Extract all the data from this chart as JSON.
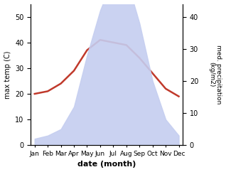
{
  "months": [
    "Jan",
    "Feb",
    "Mar",
    "Apr",
    "May",
    "Jun",
    "Jul",
    "Aug",
    "Sep",
    "Oct",
    "Nov",
    "Dec"
  ],
  "temperature": [
    20,
    21,
    24,
    29,
    37,
    41,
    40,
    39,
    34,
    28,
    22,
    19
  ],
  "precipitation": [
    2,
    3,
    5,
    12,
    28,
    42,
    52,
    52,
    38,
    20,
    8,
    3
  ],
  "temp_color": "#c0392b",
  "precip_fill_color": "#c5cef0",
  "temp_ylim": [
    0,
    55
  ],
  "precip_ylim": [
    0,
    44
  ],
  "temp_yticks": [
    0,
    10,
    20,
    30,
    40,
    50
  ],
  "precip_yticks": [
    0,
    10,
    20,
    30,
    40
  ],
  "xlabel": "date (month)",
  "ylabel_left": "max temp (C)",
  "ylabel_right": "med. precipitation\n(kg/m2)",
  "background_color": "#ffffff"
}
